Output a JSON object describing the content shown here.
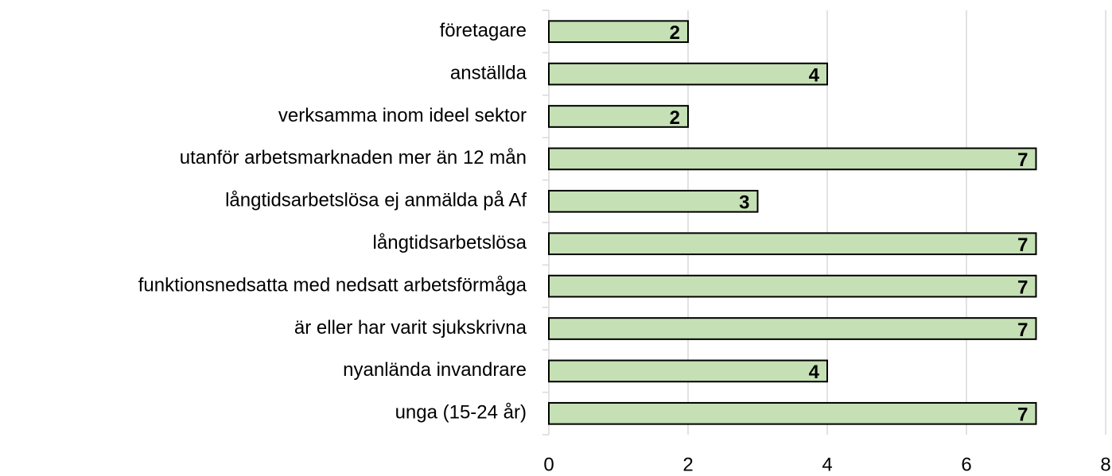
{
  "chart_data": {
    "type": "barh",
    "categories": [
      "företagare",
      "anställda",
      "verksamma inom ideel sektor",
      "utanför arbetsmarknaden mer än 12 mån",
      "långtidsarbetslösa ej anmälda på Af",
      "långtidsarbetslösa",
      "funktionsnedsatta med nedsatt arbetsförmåga",
      "är eller har varit sjukskrivna",
      "nyanlända invandrare",
      "unga (15-24 år)"
    ],
    "values": [
      2,
      4,
      2,
      7,
      3,
      7,
      7,
      7,
      4,
      7
    ],
    "color": "#c5e0b4",
    "xlim": [
      0,
      8
    ],
    "xticks": [
      0,
      2,
      4,
      6,
      8
    ],
    "grid": true
  }
}
